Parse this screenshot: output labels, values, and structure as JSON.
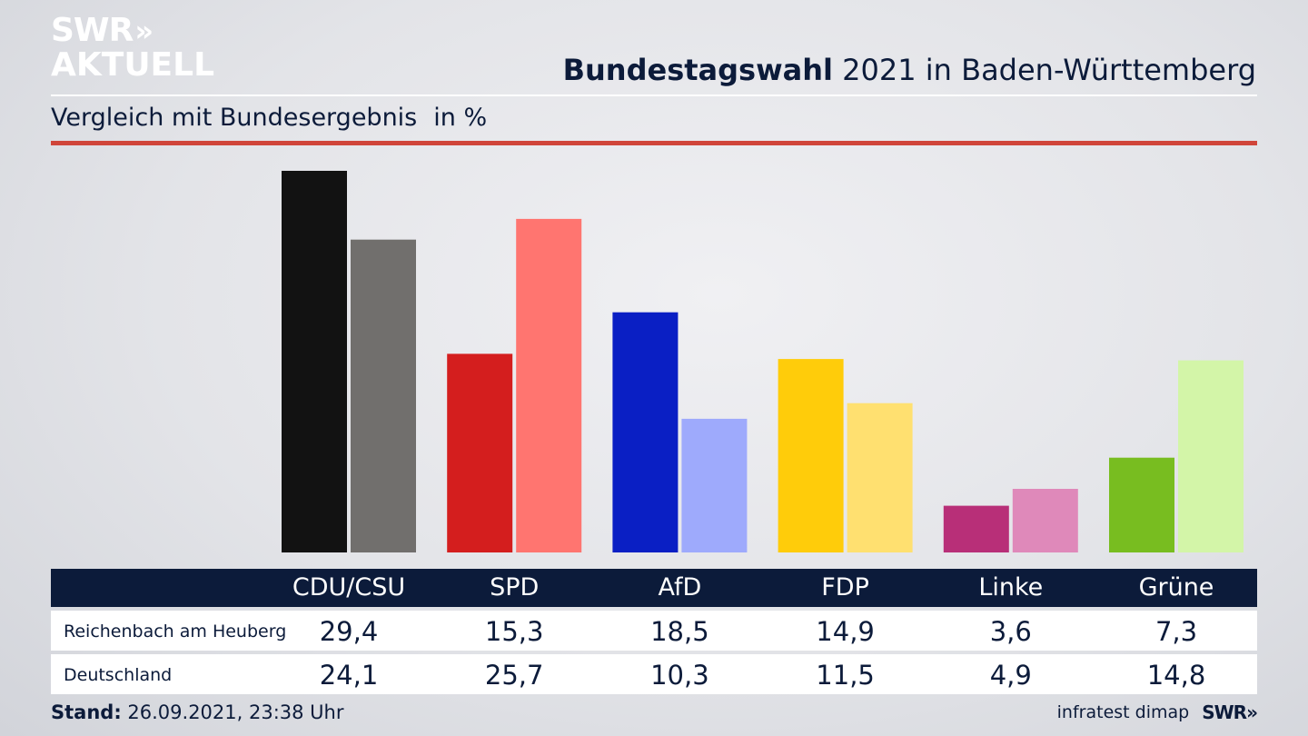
{
  "header": {
    "logo_line1": "SWR",
    "logo_chevrons": "»",
    "logo_line2": "AKTUELL",
    "title_bold": "Bundestagswahl",
    "title_rest": " 2021 in Baden-Württemberg",
    "subtitle": "Vergleich mit Bundesergebnis",
    "unit": "in %"
  },
  "footer": {
    "stand_label": "Stand:",
    "stand_value": " 26.09.2021, 23:38 Uhr",
    "source": "infratest dimap",
    "brand": "SWR»"
  },
  "table": {
    "rows": [
      {
        "label": "Reichenbach am Heuberg",
        "values": [
          "29,4",
          "15,3",
          "18,5",
          "14,9",
          "3,6",
          "7,3"
        ]
      },
      {
        "label": "Deutschland",
        "values": [
          "24,1",
          "25,7",
          "10,3",
          "11,5",
          "4,9",
          "14,8"
        ]
      }
    ]
  },
  "chart_data": {
    "type": "bar",
    "title": "Bundestagswahl 2021 in Baden-Württemberg",
    "subtitle": "Vergleich mit Bundesergebnis",
    "ylabel": "in %",
    "categories": [
      "CDU/CSU",
      "SPD",
      "AfD",
      "FDP",
      "Linke",
      "Grüne"
    ],
    "series": [
      {
        "name": "Reichenbach am Heuberg",
        "values": [
          29.4,
          15.3,
          18.5,
          14.9,
          3.6,
          7.3
        ],
        "colors": [
          "#121212",
          "#d41e1e",
          "#0a1fc4",
          "#ffcc0a",
          "#b82f78",
          "#78bd20"
        ]
      },
      {
        "name": "Deutschland",
        "values": [
          24.1,
          25.7,
          10.3,
          11.5,
          4.9,
          14.8
        ],
        "colors": [
          "#716f6d",
          "#ff7570",
          "#9eaafc",
          "#ffe070",
          "#df89ba",
          "#d3f5a8"
        ]
      }
    ],
    "ylim": [
      0,
      29.4
    ],
    "grid": false,
    "legend": "table below chart"
  }
}
